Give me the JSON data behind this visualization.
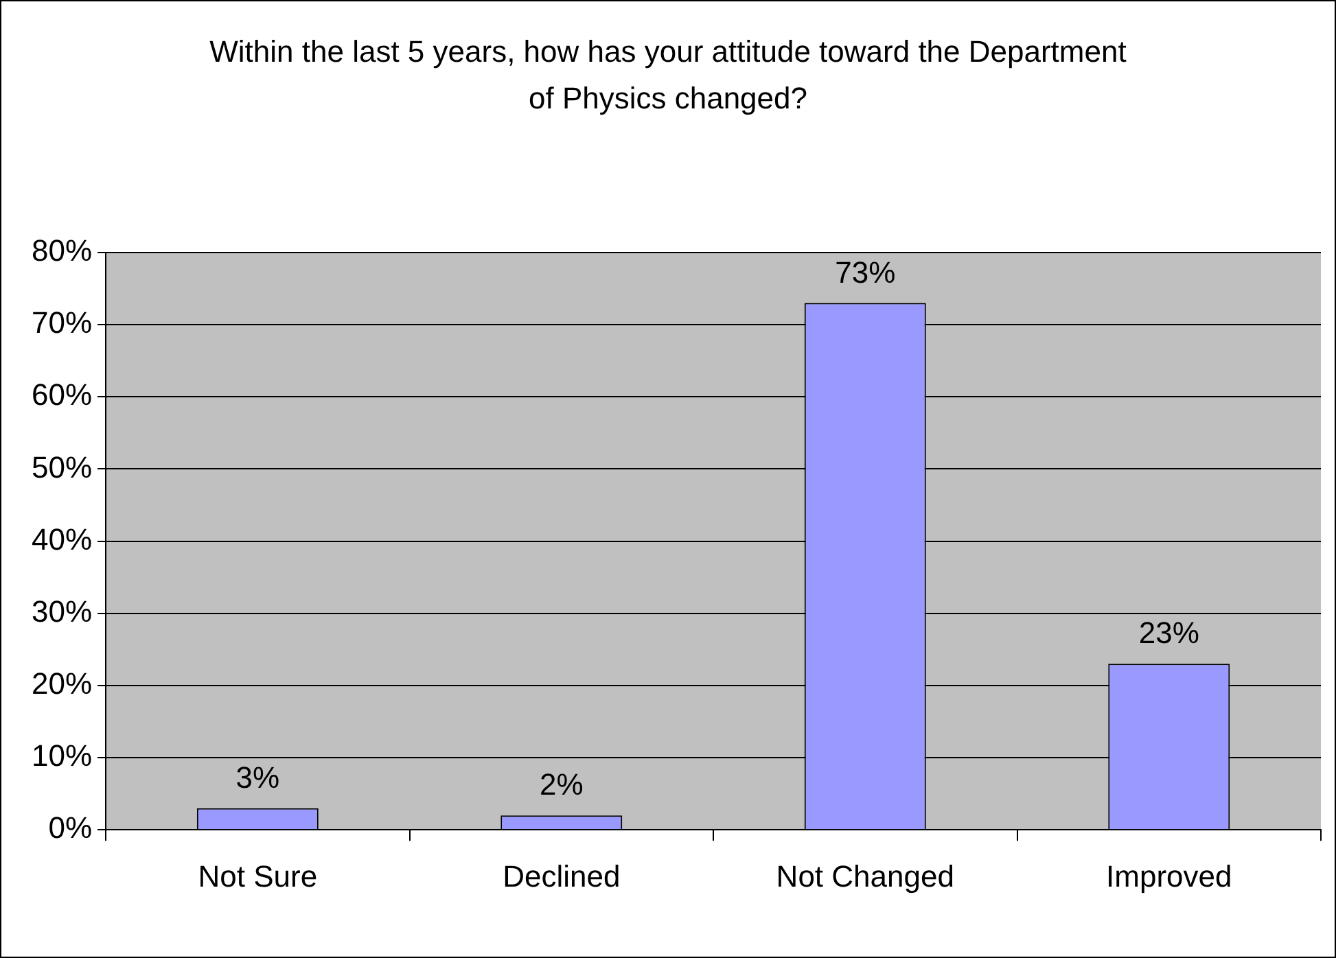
{
  "chart_data": {
    "type": "bar",
    "title": "Within the last 5 years, how has your attitude toward the Department of Physics changed?",
    "categories": [
      "Not Sure",
      "Declined",
      "Not Changed",
      "Improved"
    ],
    "values": [
      3,
      2,
      73,
      23
    ],
    "value_labels": [
      "3%",
      "2%",
      "73%",
      "23%"
    ],
    "color": "#9999ff",
    "ylim": [
      0,
      80
    ],
    "yticks": [
      {
        "value": 0,
        "label": "0%"
      },
      {
        "value": 10,
        "label": "10%"
      },
      {
        "value": 20,
        "label": "20%"
      },
      {
        "value": 30,
        "label": "30%"
      },
      {
        "value": 40,
        "label": "40%"
      },
      {
        "value": 50,
        "label": "50%"
      },
      {
        "value": 60,
        "label": "60%"
      },
      {
        "value": 70,
        "label": "70%"
      },
      {
        "value": 80,
        "label": "80%"
      }
    ],
    "grid": "y",
    "legend": false
  }
}
